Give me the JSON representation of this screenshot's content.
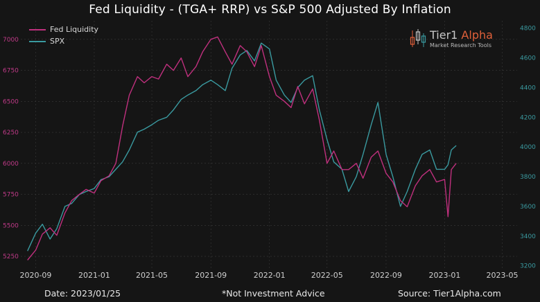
{
  "title": "Fed Liquidity - (TGA+ RRP) vs S&P 500 Adjusted By Inflation",
  "footer": {
    "date": "Date: 2023/01/25",
    "disclaimer": "*Not Investment Advice",
    "source": "Source: Tier1Alpha.com"
  },
  "logo": {
    "name": "Tier1",
    "accent": "Alpha",
    "tagline": "Market Research Tools",
    "icon": "candlestick-logo-icon"
  },
  "colors": {
    "background": "#151515",
    "fed_liquidity": "#c0307e",
    "spx": "#3a9aa0",
    "grid": "#3a3a3a",
    "left_axis_text": "#c03a88",
    "right_axis_text": "#3a9aa0",
    "logo_accent": "#e0603a"
  },
  "chart_data": {
    "type": "line",
    "legend": [
      "Fed Liquidity",
      "SPX"
    ],
    "legend_placement": "top-left",
    "grid": true,
    "x_ticks": [
      "2020-09",
      "2021-01",
      "2021-05",
      "2021-09",
      "2022-01",
      "2022-05",
      "2022-09",
      "2023-01",
      "2023-05"
    ],
    "xlim": [
      "2020-08-01",
      "2023-06-01"
    ],
    "y_left": {
      "label": "",
      "ticks": [
        5250,
        5500,
        5750,
        6000,
        6250,
        6500,
        6750,
        7000
      ],
      "lim": [
        5150,
        7150
      ]
    },
    "y_right": {
      "label": "",
      "ticks": [
        3200,
        3400,
        3600,
        3800,
        4000,
        4200,
        4400,
        4600,
        4800
      ],
      "lim": [
        3180,
        4850
      ]
    },
    "series": [
      {
        "name": "Fed Liquidity",
        "axis": "left",
        "x": [
          "2020-08-15",
          "2020-09-01",
          "2020-09-15",
          "2020-10-01",
          "2020-10-15",
          "2020-11-01",
          "2020-11-15",
          "2020-12-01",
          "2020-12-15",
          "2021-01-01",
          "2021-01-15",
          "2021-02-01",
          "2021-02-15",
          "2021-03-01",
          "2021-03-15",
          "2021-04-01",
          "2021-04-15",
          "2021-05-01",
          "2021-05-15",
          "2021-06-01",
          "2021-06-15",
          "2021-07-01",
          "2021-07-15",
          "2021-08-01",
          "2021-08-15",
          "2021-09-01",
          "2021-09-15",
          "2021-10-01",
          "2021-10-15",
          "2021-11-01",
          "2021-11-15",
          "2021-12-01",
          "2021-12-15",
          "2022-01-01",
          "2022-01-15",
          "2022-02-01",
          "2022-02-15",
          "2022-03-01",
          "2022-03-15",
          "2022-04-01",
          "2022-04-15",
          "2022-05-01",
          "2022-05-15",
          "2022-06-01",
          "2022-06-15",
          "2022-07-01",
          "2022-07-15",
          "2022-08-01",
          "2022-08-15",
          "2022-09-01",
          "2022-09-15",
          "2022-10-01",
          "2022-10-15",
          "2022-11-01",
          "2022-11-15",
          "2022-12-01",
          "2022-12-15",
          "2023-01-01",
          "2023-01-08",
          "2023-01-15",
          "2023-01-25"
        ],
        "values": [
          5220,
          5300,
          5430,
          5480,
          5420,
          5600,
          5700,
          5750,
          5790,
          5760,
          5860,
          5900,
          6000,
          6300,
          6550,
          6700,
          6650,
          6700,
          6680,
          6800,
          6750,
          6850,
          6700,
          6780,
          6900,
          7000,
          7020,
          6900,
          6800,
          6950,
          6900,
          6780,
          6950,
          6700,
          6550,
          6500,
          6450,
          6620,
          6480,
          6600,
          6350,
          6000,
          6100,
          5950,
          5950,
          6000,
          5880,
          6050,
          6100,
          5920,
          5850,
          5700,
          5650,
          5820,
          5900,
          5950,
          5850,
          5870,
          5570,
          5950,
          6000
        ]
      },
      {
        "name": "SPX",
        "axis": "right",
        "x": [
          "2020-08-15",
          "2020-09-01",
          "2020-09-15",
          "2020-10-01",
          "2020-10-15",
          "2020-11-01",
          "2020-11-15",
          "2020-12-01",
          "2020-12-15",
          "2021-01-01",
          "2021-01-15",
          "2021-02-01",
          "2021-02-15",
          "2021-03-01",
          "2021-03-15",
          "2021-04-01",
          "2021-04-15",
          "2021-05-01",
          "2021-05-15",
          "2021-06-01",
          "2021-06-15",
          "2021-07-01",
          "2021-07-15",
          "2021-08-01",
          "2021-08-15",
          "2021-09-01",
          "2021-09-15",
          "2021-10-01",
          "2021-10-15",
          "2021-11-01",
          "2021-11-15",
          "2021-12-01",
          "2021-12-15",
          "2022-01-01",
          "2022-01-15",
          "2022-02-01",
          "2022-02-15",
          "2022-03-01",
          "2022-03-15",
          "2022-04-01",
          "2022-04-15",
          "2022-05-01",
          "2022-05-15",
          "2022-06-01",
          "2022-06-15",
          "2022-07-01",
          "2022-07-15",
          "2022-08-01",
          "2022-08-15",
          "2022-09-01",
          "2022-09-15",
          "2022-10-01",
          "2022-10-15",
          "2022-11-01",
          "2022-11-15",
          "2022-12-01",
          "2022-12-15",
          "2023-01-01",
          "2023-01-08",
          "2023-01-15",
          "2023-01-25"
        ],
        "values": [
          3300,
          3420,
          3480,
          3380,
          3450,
          3600,
          3620,
          3680,
          3700,
          3720,
          3780,
          3800,
          3850,
          3900,
          3980,
          4100,
          4120,
          4150,
          4180,
          4200,
          4250,
          4320,
          4350,
          4380,
          4420,
          4450,
          4420,
          4380,
          4530,
          4620,
          4650,
          4580,
          4700,
          4660,
          4450,
          4350,
          4300,
          4400,
          4450,
          4480,
          4250,
          4050,
          3900,
          3850,
          3700,
          3800,
          3950,
          4150,
          4300,
          3950,
          3800,
          3600,
          3700,
          3850,
          3950,
          3980,
          3850,
          3850,
          3880,
          3980,
          4010
        ]
      }
    ]
  }
}
